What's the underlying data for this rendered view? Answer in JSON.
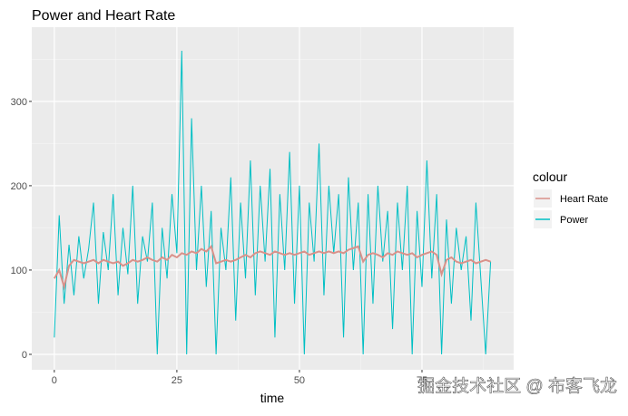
{
  "chart_data": {
    "type": "line",
    "title": "Power and Heart Rate",
    "xlabel": "time",
    "legend_title": "colour",
    "watermark": "掘金技术社区 @ 布客飞龙",
    "x": [
      0,
      1,
      2,
      3,
      4,
      5,
      6,
      7,
      8,
      9,
      10,
      11,
      12,
      13,
      14,
      15,
      16,
      17,
      18,
      19,
      20,
      21,
      22,
      23,
      24,
      25,
      26,
      27,
      28,
      29,
      30,
      31,
      32,
      33,
      34,
      35,
      36,
      37,
      38,
      39,
      40,
      41,
      42,
      43,
      44,
      45,
      46,
      47,
      48,
      49,
      50,
      51,
      52,
      53,
      54,
      55,
      56,
      57,
      58,
      59,
      60,
      61,
      62,
      63,
      64,
      65,
      66,
      67,
      68,
      69,
      70,
      71,
      72,
      73,
      74,
      75,
      76,
      77,
      78,
      79,
      80,
      81,
      82,
      83,
      84,
      85,
      86,
      87,
      88,
      89
    ],
    "series": [
      {
        "name": "Heart Rate",
        "color": "#d9918a",
        "values": [
          90,
          100,
          80,
          105,
          112,
          110,
          108,
          110,
          112,
          108,
          112,
          110,
          108,
          110,
          105,
          108,
          112,
          110,
          112,
          115,
          112,
          110,
          115,
          112,
          118,
          115,
          120,
          118,
          122,
          120,
          125,
          122,
          128,
          108,
          110,
          112,
          110,
          112,
          115,
          118,
          115,
          120,
          122,
          120,
          118,
          122,
          120,
          118,
          120,
          118,
          120,
          122,
          118,
          120,
          122,
          120,
          122,
          120,
          122,
          120,
          124,
          126,
          128,
          110,
          118,
          120,
          118,
          115,
          120,
          118,
          122,
          120,
          118,
          120,
          115,
          118,
          120,
          122,
          118,
          95,
          112,
          115,
          110,
          108,
          110,
          112,
          108,
          110,
          112,
          110
        ]
      },
      {
        "name": "Power",
        "color": "#00bfc4",
        "values": [
          20,
          165,
          60,
          130,
          70,
          140,
          90,
          125,
          180,
          60,
          145,
          100,
          190,
          70,
          150,
          95,
          200,
          60,
          140,
          110,
          180,
          0,
          150,
          90,
          190,
          120,
          360,
          0,
          280,
          100,
          200,
          80,
          170,
          0,
          150,
          100,
          210,
          40,
          180,
          90,
          230,
          70,
          200,
          110,
          220,
          20,
          190,
          100,
          240,
          60,
          200,
          0,
          180,
          110,
          250,
          70,
          200,
          120,
          190,
          20,
          210,
          100,
          180,
          0,
          190,
          60,
          200,
          110,
          170,
          30,
          180,
          100,
          200,
          0,
          170,
          80,
          230,
          90,
          190,
          0,
          160,
          60,
          150,
          100,
          140,
          40,
          180,
          90,
          0,
          110
        ]
      }
    ],
    "xlim": [
      -4.6,
      93.7
    ],
    "ylim": [
      -18.3,
      388
    ],
    "xticks": [
      0,
      25,
      50,
      75
    ],
    "yticks": [
      0,
      100,
      200,
      300
    ],
    "grid": true,
    "legend": "right"
  }
}
